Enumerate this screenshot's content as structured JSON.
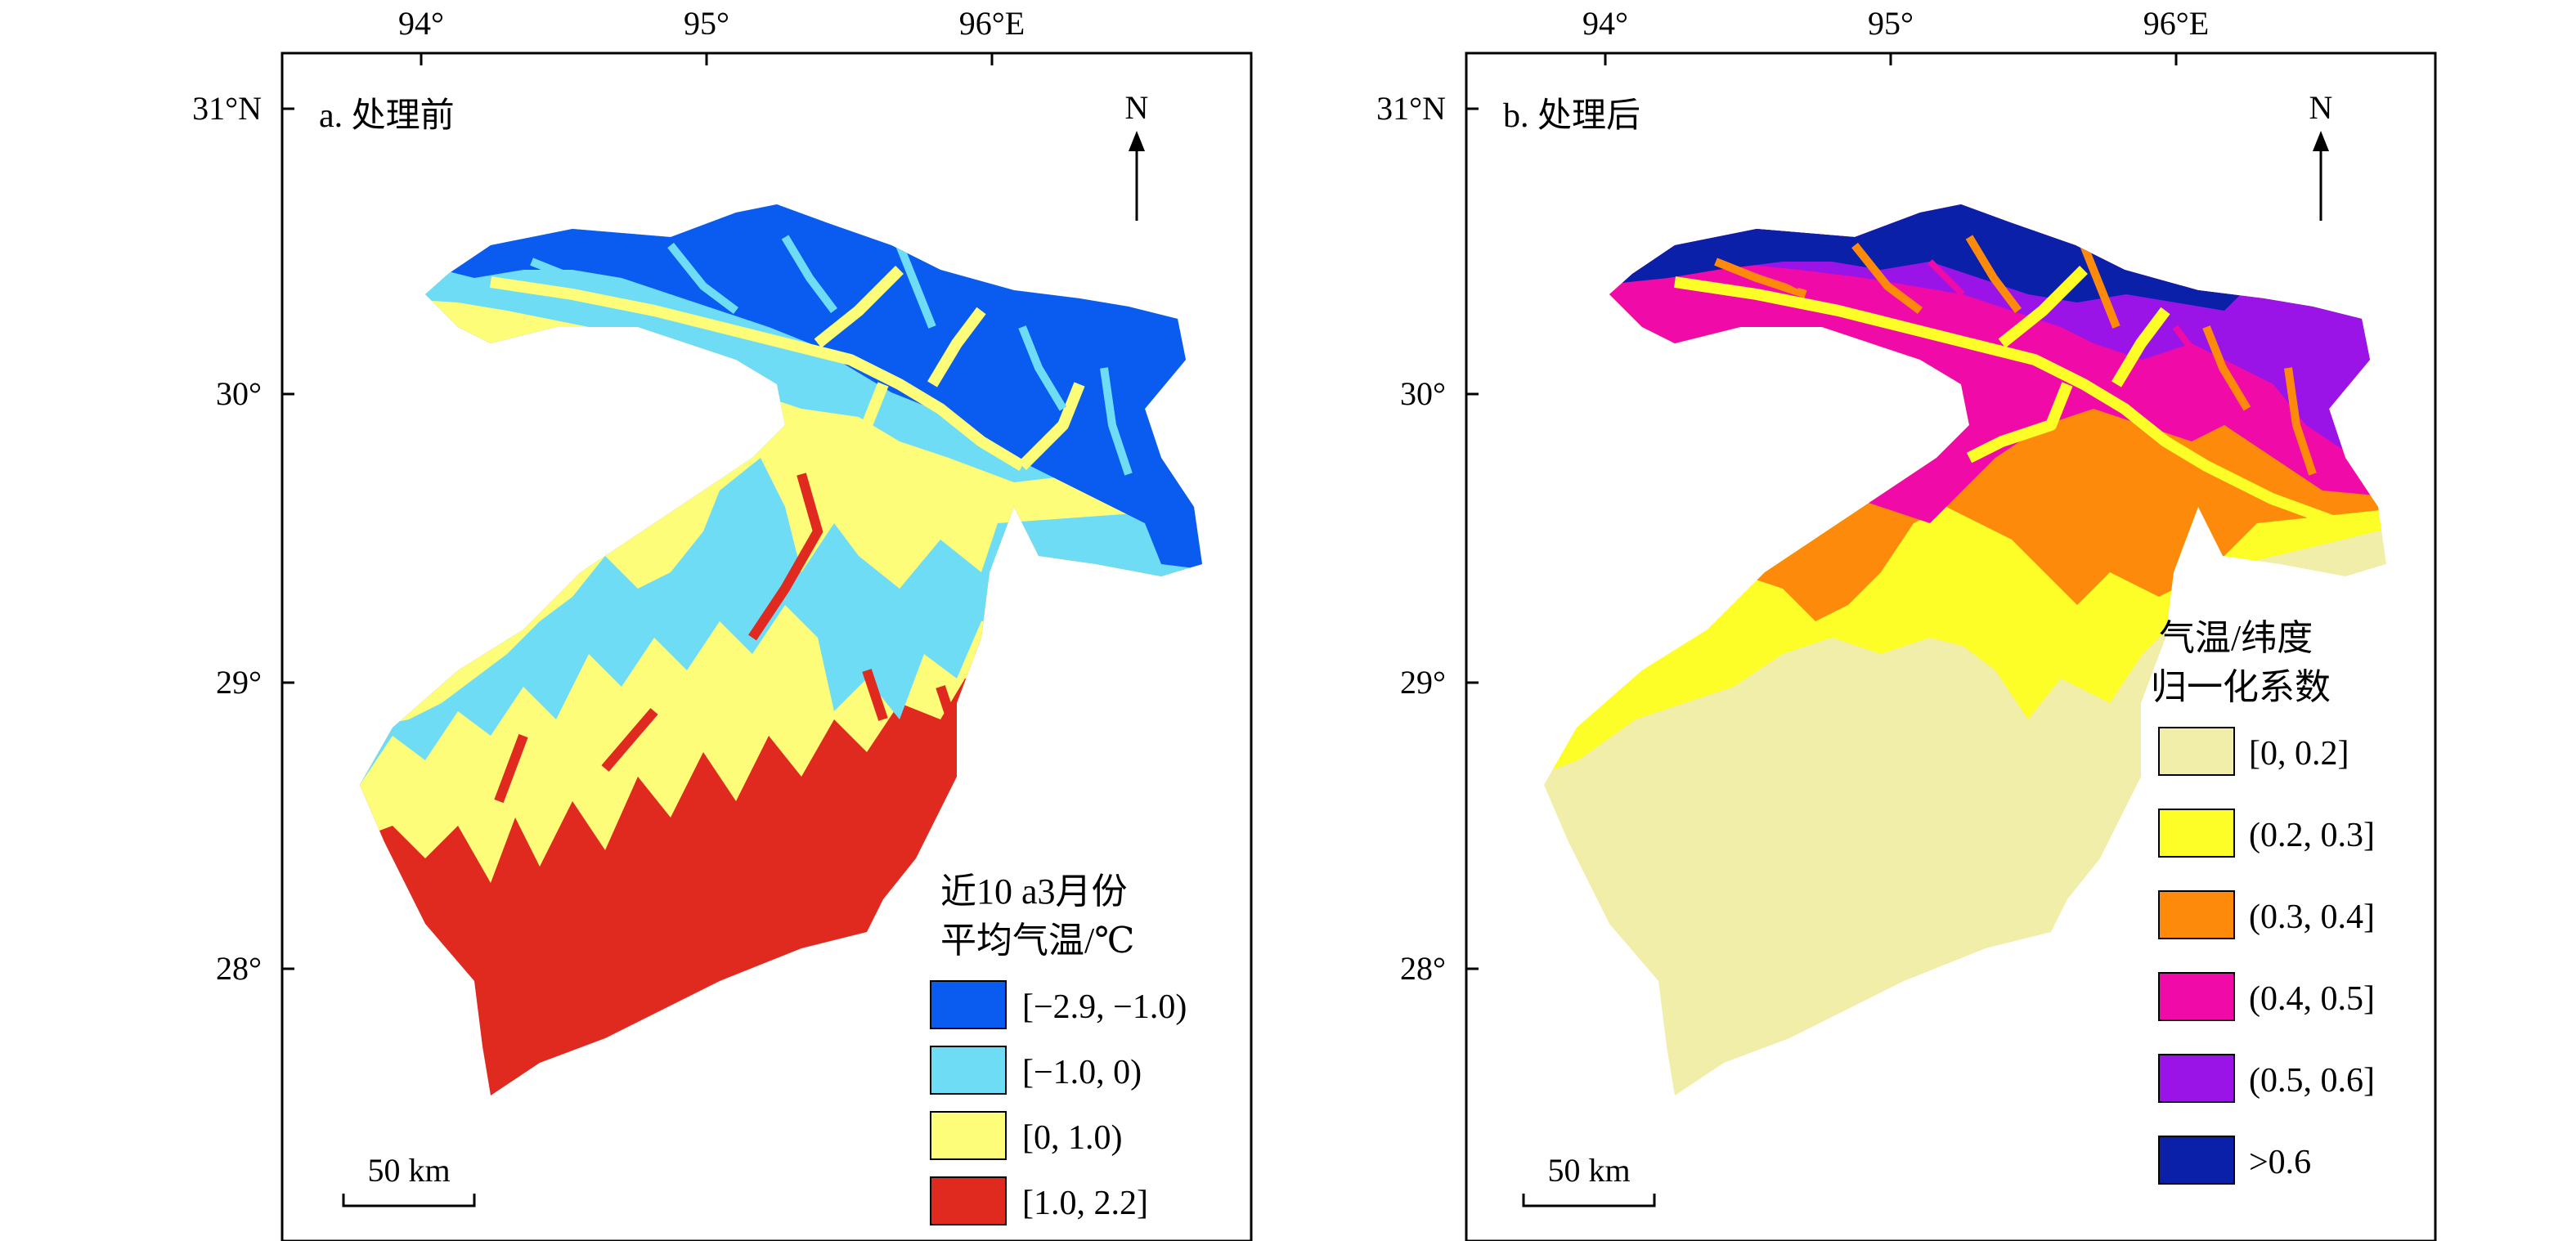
{
  "colors": {
    "blue": "#0a5cf0",
    "cyan": "#6edcf5",
    "yellow_light": "#fdfd7a",
    "red": "#e02a20",
    "beige": "#f0eea8",
    "yellow": "#fdfd28",
    "orange": "#fd8a0a",
    "pink": "#f00aa8",
    "purple": "#9a14e8",
    "navy": "#0a20a8"
  },
  "axes": {
    "lon_ticks": [
      "94°",
      "95°",
      "96°E"
    ],
    "lat_ticks": [
      "31°N",
      "30°",
      "29°",
      "28°"
    ]
  },
  "north_label": "N",
  "scale_label": "50 km",
  "panels": [
    {
      "title": "a. 处理前",
      "legend_title_line1": "近10 a3月份",
      "legend_title_line2": "平均气温/℃",
      "legend": [
        {
          "label": "[−2.9, −1.0)",
          "color": "#0a5cf0"
        },
        {
          "label": "[−1.0, 0)",
          "color": "#6edcf5"
        },
        {
          "label": "[0, 1.0)",
          "color": "#fdfd7a"
        },
        {
          "label": "[1.0, 2.2]",
          "color": "#e02a20"
        }
      ]
    },
    {
      "title": "b. 处理后",
      "legend_title_line1": "气温/纬度",
      "legend_title_line2": "归一化系数",
      "legend": [
        {
          "label": "[0, 0.2]",
          "color": "#f0eea8"
        },
        {
          "label": "(0.2, 0.3]",
          "color": "#fdfd28"
        },
        {
          "label": "(0.3, 0.4]",
          "color": "#fd8a0a"
        },
        {
          "label": "(0.4, 0.5]",
          "color": "#f00aa8"
        },
        {
          "label": "(0.5, 0.6]",
          "color": "#9a14e8"
        },
        {
          "label": ">0.6",
          "color": "#0a20a8"
        }
      ]
    }
  ]
}
